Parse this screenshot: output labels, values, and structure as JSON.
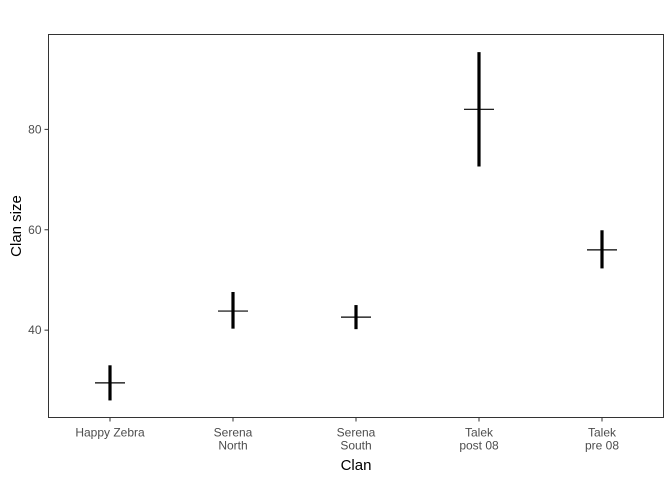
{
  "chart_data": {
    "type": "errorbar",
    "xlabel": "Clan",
    "ylabel": "Clan size",
    "categories": [
      [
        "Happy Zebra"
      ],
      [
        "Serena",
        "North"
      ],
      [
        "Serena",
        "South"
      ],
      [
        "Talek",
        "post 08"
      ],
      [
        "Talek",
        "pre 08"
      ]
    ],
    "points": [
      {
        "mean": 29.5,
        "lower": 26.0,
        "upper": 33.0
      },
      {
        "mean": 43.8,
        "lower": 40.3,
        "upper": 47.6
      },
      {
        "mean": 42.6,
        "lower": 40.2,
        "upper": 45.0
      },
      {
        "mean": 84.0,
        "lower": 72.6,
        "upper": 95.4
      },
      {
        "mean": 56.0,
        "lower": 52.3,
        "upper": 59.9
      }
    ],
    "yticks": [
      40,
      60,
      80
    ],
    "ylim": [
      22.6,
      98.9
    ],
    "grid": false,
    "legend": "none",
    "colors": {
      "marks": "#000000",
      "panel_border": "#333333",
      "tick_text": "#4d4d4d"
    }
  }
}
